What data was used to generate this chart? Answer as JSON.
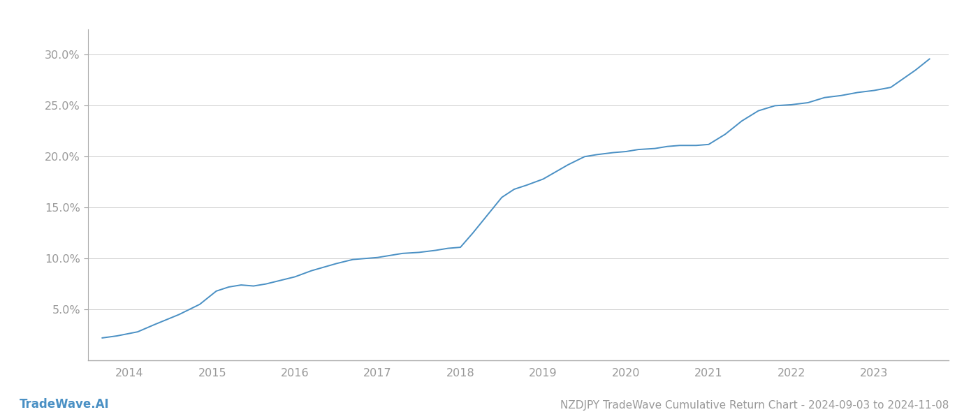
{
  "title": "NZDJPY TradeWave Cumulative Return Chart - 2024-09-03 to 2024-11-08",
  "watermark": "TradeWave.AI",
  "line_color": "#4a90c4",
  "background_color": "#ffffff",
  "grid_color": "#cccccc",
  "x_years": [
    2014,
    2015,
    2016,
    2017,
    2018,
    2019,
    2020,
    2021,
    2022,
    2023
  ],
  "x_data": [
    2013.67,
    2013.85,
    2014.1,
    2014.3,
    2014.6,
    2014.85,
    2015.05,
    2015.2,
    2015.35,
    2015.5,
    2015.65,
    2015.8,
    2016.0,
    2016.2,
    2016.5,
    2016.7,
    2016.85,
    2017.0,
    2017.15,
    2017.3,
    2017.5,
    2017.7,
    2017.85,
    2018.0,
    2018.15,
    2018.3,
    2018.5,
    2018.65,
    2018.8,
    2019.0,
    2019.15,
    2019.3,
    2019.5,
    2019.65,
    2019.85,
    2020.0,
    2020.15,
    2020.35,
    2020.5,
    2020.65,
    2020.85,
    2021.0,
    2021.2,
    2021.4,
    2021.6,
    2021.8,
    2022.0,
    2022.2,
    2022.4,
    2022.6,
    2022.8,
    2023.0,
    2023.2,
    2023.5,
    2023.67
  ],
  "y_data": [
    2.2,
    2.4,
    2.8,
    3.5,
    4.5,
    5.5,
    6.8,
    7.2,
    7.4,
    7.3,
    7.5,
    7.8,
    8.2,
    8.8,
    9.5,
    9.9,
    10.0,
    10.1,
    10.3,
    10.5,
    10.6,
    10.8,
    11.0,
    11.1,
    12.5,
    14.0,
    16.0,
    16.8,
    17.2,
    17.8,
    18.5,
    19.2,
    20.0,
    20.2,
    20.4,
    20.5,
    20.7,
    20.8,
    21.0,
    21.1,
    21.1,
    21.2,
    22.2,
    23.5,
    24.5,
    25.0,
    25.1,
    25.3,
    25.8,
    26.0,
    26.3,
    26.5,
    26.8,
    28.5,
    29.6
  ],
  "ylim": [
    0,
    32.5
  ],
  "yticks": [
    5.0,
    10.0,
    15.0,
    20.0,
    25.0,
    30.0
  ],
  "xlim": [
    2013.5,
    2023.9
  ],
  "title_fontsize": 11,
  "tick_fontsize": 11.5,
  "watermark_fontsize": 12,
  "spine_color": "#aaaaaa",
  "tick_color": "#999999",
  "axis_color": "#aaaaaa"
}
